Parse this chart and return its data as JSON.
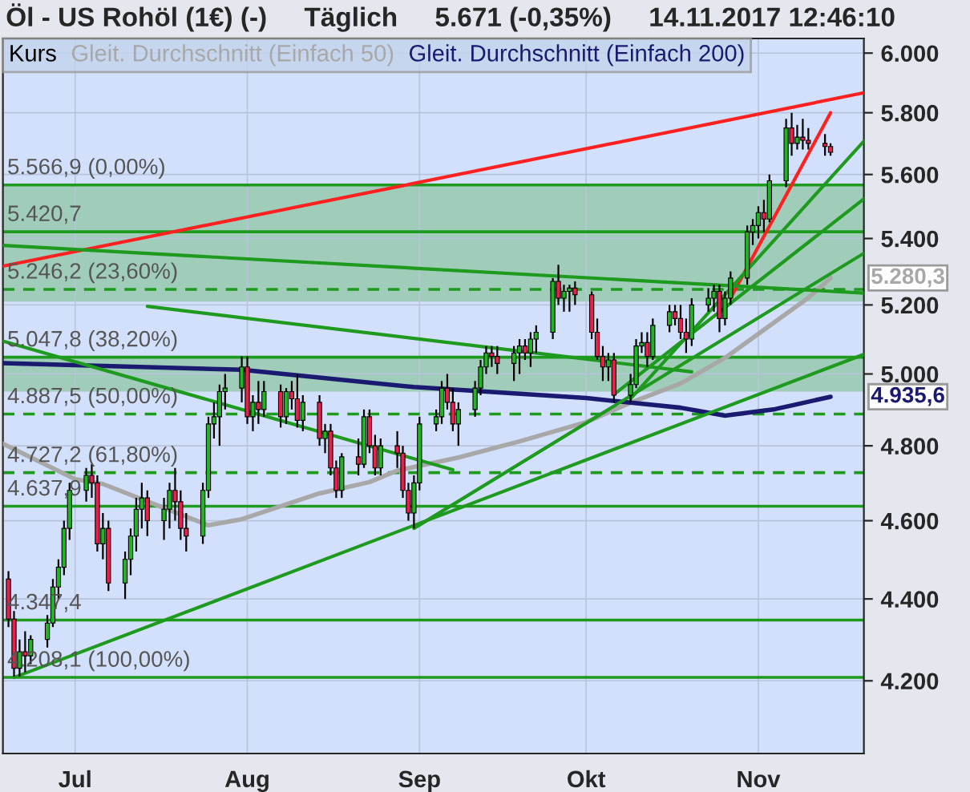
{
  "chart_data": {
    "type": "candlestick",
    "title": "Öl - US Rohöl (1€) (-)     Täglich     5.671 (-0,35%)     14.11.2017 12:46:10",
    "log": true,
    "grid": true,
    "legend": "top left",
    "xlim": [
      "2017-06-18",
      "2017-11-20"
    ],
    "xticks": [
      {
        "value": "2017-07-01",
        "label": "Jul"
      },
      {
        "value": "2017-08-01",
        "label": "Aug"
      },
      {
        "value": "2017-09-01",
        "label": "Sep"
      },
      {
        "value": "2017-10-01",
        "label": "Okt"
      },
      {
        "value": "2017-11-01",
        "label": "Nov"
      }
    ],
    "ylim": [
      4030,
      6050
    ],
    "yticks": [
      {
        "value": 4200,
        "label": "4.200"
      },
      {
        "value": 4400,
        "label": "4.400"
      },
      {
        "value": 4600,
        "label": "4.600"
      },
      {
        "value": 4800,
        "label": "4.800"
      },
      {
        "value": 5000,
        "label": "5.000"
      },
      {
        "value": 5200,
        "label": "5.200"
      },
      {
        "value": 5400,
        "label": "5.400"
      },
      {
        "value": 5600,
        "label": "5.600"
      },
      {
        "value": 5800,
        "label": "5.800"
      },
      {
        "value": 6000,
        "label": "6.000"
      }
    ],
    "series": [
      {
        "name": "Kurs",
        "x": [
          "2017-06-19",
          "2017-06-20",
          "2017-06-21",
          "2017-06-22",
          "2017-06-23",
          "2017-06-26",
          "2017-06-27",
          "2017-06-28",
          "2017-06-29",
          "2017-06-30",
          "2017-07-03",
          "2017-07-04",
          "2017-07-05",
          "2017-07-06",
          "2017-07-07",
          "2017-07-10",
          "2017-07-11",
          "2017-07-12",
          "2017-07-13",
          "2017-07-14",
          "2017-07-17",
          "2017-07-18",
          "2017-07-19",
          "2017-07-20",
          "2017-07-21",
          "2017-07-24",
          "2017-07-25",
          "2017-07-26",
          "2017-07-27",
          "2017-07-28",
          "2017-07-31",
          "2017-08-01",
          "2017-08-02",
          "2017-08-03",
          "2017-08-04",
          "2017-08-07",
          "2017-08-08",
          "2017-08-09",
          "2017-08-10",
          "2017-08-11",
          "2017-08-14",
          "2017-08-15",
          "2017-08-16",
          "2017-08-17",
          "2017-08-18",
          "2017-08-21",
          "2017-08-22",
          "2017-08-23",
          "2017-08-24",
          "2017-08-25",
          "2017-08-28",
          "2017-08-29",
          "2017-08-30",
          "2017-08-31",
          "2017-09-01",
          "2017-09-04",
          "2017-09-05",
          "2017-09-06",
          "2017-09-07",
          "2017-09-08",
          "2017-09-11",
          "2017-09-12",
          "2017-09-13",
          "2017-09-14",
          "2017-09-15",
          "2017-09-18",
          "2017-09-19",
          "2017-09-20",
          "2017-09-21",
          "2017-09-22",
          "2017-09-25",
          "2017-09-26",
          "2017-09-27",
          "2017-09-28",
          "2017-09-29",
          "2017-10-02",
          "2017-10-03",
          "2017-10-04",
          "2017-10-05",
          "2017-10-06",
          "2017-10-09",
          "2017-10-10",
          "2017-10-11",
          "2017-10-12",
          "2017-10-13",
          "2017-10-16",
          "2017-10-17",
          "2017-10-18",
          "2017-10-19",
          "2017-10-20",
          "2017-10-23",
          "2017-10-24",
          "2017-10-25",
          "2017-10-26",
          "2017-10-27",
          "2017-10-30",
          "2017-10-31",
          "2017-11-01",
          "2017-11-02",
          "2017-11-03",
          "2017-11-06",
          "2017-11-07",
          "2017-11-08",
          "2017-11-09",
          "2017-11-10",
          "2017-11-13",
          "2017-11-14"
        ],
        "ohlc": [
          [
            4450,
            4470,
            4330,
            4350
          ],
          [
            4350,
            4370,
            4210,
            4230
          ],
          [
            4230,
            4300,
            4210,
            4270
          ],
          [
            4270,
            4320,
            4220,
            4260
          ],
          [
            4260,
            4310,
            4240,
            4300
          ],
          [
            4300,
            4360,
            4280,
            4340
          ],
          [
            4340,
            4450,
            4330,
            4430
          ],
          [
            4430,
            4500,
            4400,
            4480
          ],
          [
            4480,
            4600,
            4460,
            4580
          ],
          [
            4580,
            4700,
            4550,
            4680
          ],
          [
            4680,
            4740,
            4650,
            4720
          ],
          [
            4720,
            4750,
            4660,
            4700
          ],
          [
            4700,
            4720,
            4520,
            4540
          ],
          [
            4540,
            4620,
            4500,
            4580
          ],
          [
            4580,
            4600,
            4420,
            4440
          ],
          [
            4440,
            4520,
            4400,
            4500
          ],
          [
            4500,
            4580,
            4460,
            4560
          ],
          [
            4560,
            4660,
            4520,
            4630
          ],
          [
            4630,
            4700,
            4580,
            4660
          ],
          [
            4660,
            4680,
            4560,
            4600
          ],
          [
            4600,
            4660,
            4550,
            4630
          ],
          [
            4630,
            4700,
            4580,
            4680
          ],
          [
            4680,
            4740,
            4600,
            4650
          ],
          [
            4650,
            4680,
            4550,
            4580
          ],
          [
            4580,
            4620,
            4520,
            4560
          ],
          [
            4560,
            4700,
            4540,
            4680
          ],
          [
            4680,
            4880,
            4660,
            4860
          ],
          [
            4860,
            4920,
            4820,
            4880
          ],
          [
            4880,
            4970,
            4800,
            4950
          ],
          [
            4950,
            5000,
            4900,
            4960
          ],
          [
            4960,
            5050,
            4920,
            5020
          ],
          [
            5020,
            5050,
            4860,
            4880
          ],
          [
            4880,
            4940,
            4840,
            4920
          ],
          [
            4920,
            4980,
            4860,
            4900
          ],
          [
            4900,
            4980,
            4880,
            4950
          ],
          [
            4950,
            4970,
            4850,
            4880
          ],
          [
            4880,
            4960,
            4860,
            4950
          ],
          [
            4950,
            4980,
            4900,
            4930
          ],
          [
            4930,
            5000,
            4850,
            4870
          ],
          [
            4870,
            4940,
            4840,
            4920
          ],
          [
            4920,
            4940,
            4800,
            4820
          ],
          [
            4820,
            4860,
            4780,
            4840
          ],
          [
            4840,
            4860,
            4720,
            4740
          ],
          [
            4740,
            4760,
            4660,
            4680
          ],
          [
            4680,
            4780,
            4660,
            4770
          ],
          [
            4770,
            4820,
            4720,
            4750
          ],
          [
            4750,
            4900,
            4740,
            4880
          ],
          [
            4880,
            4900,
            4780,
            4800
          ],
          [
            4800,
            4830,
            4720,
            4740
          ],
          [
            4740,
            4820,
            4720,
            4800
          ],
          [
            4800,
            4840,
            4740,
            4780
          ],
          [
            4780,
            4800,
            4660,
            4680
          ],
          [
            4680,
            4700,
            4600,
            4620
          ],
          [
            4620,
            4720,
            4580,
            4700
          ],
          [
            4700,
            4880,
            4680,
            4860
          ],
          [
            4860,
            4900,
            4840,
            4880
          ],
          [
            4880,
            4980,
            4860,
            4960
          ],
          [
            4960,
            5000,
            4900,
            4920
          ],
          [
            4920,
            4960,
            4840,
            4860
          ],
          [
            4860,
            4920,
            4800,
            4900
          ],
          [
            4900,
            4980,
            4880,
            4960
          ],
          [
            4960,
            5040,
            4940,
            5020
          ],
          [
            5020,
            5080,
            5000,
            5060
          ],
          [
            5060,
            5080,
            5020,
            5050
          ],
          [
            5050,
            5080,
            5000,
            5030
          ],
          [
            5030,
            5080,
            4980,
            5060
          ],
          [
            5060,
            5100,
            5000,
            5080
          ],
          [
            5080,
            5100,
            5040,
            5060
          ],
          [
            5060,
            5120,
            5020,
            5100
          ],
          [
            5100,
            5140,
            5060,
            5120
          ],
          [
            5120,
            5280,
            5100,
            5270
          ],
          [
            5270,
            5320,
            5200,
            5220
          ],
          [
            5220,
            5260,
            5180,
            5240
          ],
          [
            5240,
            5260,
            5180,
            5250
          ],
          [
            5250,
            5270,
            5200,
            5230
          ],
          [
            5230,
            5240,
            5100,
            5120
          ],
          [
            5120,
            5160,
            5040,
            5050
          ],
          [
            5050,
            5080,
            4980,
            5020
          ],
          [
            5020,
            5060,
            4980,
            5040
          ],
          [
            5040,
            5060,
            4920,
            4940
          ],
          [
            4940,
            5000,
            4920,
            4970
          ],
          [
            4970,
            5100,
            4960,
            5080
          ],
          [
            5080,
            5120,
            5060,
            5090
          ],
          [
            5090,
            5120,
            5020,
            5050
          ],
          [
            5050,
            5160,
            5040,
            5140
          ],
          [
            5140,
            5200,
            5120,
            5180
          ],
          [
            5180,
            5200,
            5140,
            5160
          ],
          [
            5160,
            5200,
            5100,
            5120
          ],
          [
            5120,
            5160,
            5060,
            5100
          ],
          [
            5100,
            5220,
            5080,
            5200
          ],
          [
            5200,
            5250,
            5180,
            5220
          ],
          [
            5220,
            5260,
            5180,
            5240
          ],
          [
            5240,
            5260,
            5120,
            5160
          ],
          [
            5160,
            5240,
            5140,
            5220
          ],
          [
            5220,
            5300,
            5200,
            5280
          ],
          [
            5280,
            5440,
            5260,
            5420
          ],
          [
            5420,
            5460,
            5380,
            5440
          ],
          [
            5440,
            5500,
            5400,
            5480
          ],
          [
            5480,
            5520,
            5420,
            5460
          ],
          [
            5460,
            5600,
            5450,
            5580
          ],
          [
            5580,
            5780,
            5560,
            5750
          ],
          [
            5750,
            5800,
            5660,
            5700
          ],
          [
            5700,
            5760,
            5680,
            5720
          ],
          [
            5720,
            5780,
            5680,
            5710
          ],
          [
            5710,
            5750,
            5680,
            5700
          ],
          [
            5700,
            5730,
            5660,
            5690
          ],
          [
            5690,
            5700,
            5660,
            5671
          ]
        ]
      },
      {
        "type": "line",
        "name": "Gleit. Durchschnitt (Einfach 50)",
        "color": "#a8a8a8",
        "x": [
          "2017-06-18",
          "2017-07-01",
          "2017-07-06",
          "2017-07-25",
          "2017-07-31",
          "2017-08-14",
          "2017-08-23",
          "2017-08-28",
          "2017-09-08",
          "2017-09-19",
          "2017-10-01",
          "2017-10-09",
          "2017-10-18",
          "2017-10-26",
          "2017-11-04",
          "2017-11-10",
          "2017-11-14"
        ],
        "values": [
          4806,
          4710,
          4697,
          4588,
          4604,
          4672,
          4702,
          4733,
          4768,
          4812,
          4865,
          4919,
          4973,
          5046,
          5150,
          5221,
          5280.3
        ]
      },
      {
        "type": "line",
        "name": "Gleit. Durchschnitt (Einfach 200)",
        "color": "#1a1a70",
        "x": [
          "2017-06-18",
          "2017-07-31",
          "2017-08-31",
          "2017-10-01",
          "2017-10-18",
          "2017-10-26",
          "2017-11-04",
          "2017-11-14"
        ],
        "values": [
          5031,
          5012,
          4963,
          4932,
          4905,
          4883,
          4901,
          4935.6
        ]
      },
      {
        "type": "line",
        "color": "#ff2020",
        "x": [
          "2017-06-18",
          "2017-11-20"
        ],
        "values": [
          5316,
          5866
        ]
      },
      {
        "type": "line",
        "color": "#ff2020",
        "x": [
          "2017-10-27",
          "2017-11-14"
        ],
        "values": [
          5220,
          5800
        ]
      },
      {
        "type": "line",
        "color": "#1e9a1e",
        "x": [
          "2017-06-18",
          "2017-11-20"
        ],
        "values": [
          5379,
          5235
        ]
      },
      {
        "type": "line",
        "color": "#1e9a1e",
        "x": [
          "2017-07-14",
          "2017-10-20"
        ],
        "values": [
          5196,
          5006
        ]
      },
      {
        "type": "line",
        "color": "#1e9a1e",
        "x": [
          "2017-06-18",
          "2017-09-07"
        ],
        "values": [
          5094,
          4735
        ]
      },
      {
        "type": "line",
        "color": "#1e9a1e",
        "x": [
          "2017-06-20",
          "2017-11-20"
        ],
        "values": [
          4208,
          5056
        ]
      },
      {
        "type": "line",
        "color": "#1e9a1e",
        "x": [
          "2017-08-31",
          "2017-11-20"
        ],
        "values": [
          4580,
          5355
        ]
      },
      {
        "type": "line",
        "color": "#1e9a1e",
        "x": [
          "2017-10-06",
          "2017-11-20"
        ],
        "values": [
          4942,
          5523
        ]
      },
      {
        "type": "line",
        "color": "#1e9a1e",
        "x": [
          "2017-10-09",
          "2017-11-20"
        ],
        "values": [
          4930,
          5707
        ]
      }
    ],
    "bands": [
      {
        "axis": "y",
        "from": 5420,
        "to": 5566.9,
        "color": "#7fbf8f"
      },
      {
        "axis": "y",
        "from": 5210,
        "to": 5420,
        "color": "#7fbf8f"
      },
      {
        "axis": "y",
        "from": 4950,
        "to": 5047.8,
        "color": "#7fbf8f"
      }
    ],
    "ref_lines": [
      {
        "axis": "y",
        "value": 5566.9,
        "label": "5.566,9 (0,00%)",
        "color": "#1e9a1e",
        "line_style": "solid"
      },
      {
        "axis": "y",
        "value": 5420.7,
        "label": "5.420,7",
        "color": "#1e9a1e",
        "line_style": "solid"
      },
      {
        "axis": "y",
        "value": 5246.2,
        "label": "5.246,2 (23,60%)",
        "color": "#1e9a1e",
        "line_style": "dashed"
      },
      {
        "axis": "y",
        "value": 5047.8,
        "label": "5.047,8 (38,20%)",
        "color": "#1e9a1e",
        "line_style": "solid"
      },
      {
        "axis": "y",
        "value": 4887.5,
        "label": "4.887,5 (50,00%)",
        "color": "#1e9a1e",
        "line_style": "dashed"
      },
      {
        "axis": "y",
        "value": 4727.2,
        "label": "4.727,2 (61,80%)",
        "color": "#1e9a1e",
        "line_style": "dashed"
      },
      {
        "axis": "y",
        "value": 4637.9,
        "label": "4.637,9",
        "color": "#1e9a1e",
        "line_style": "solid"
      },
      {
        "axis": "y",
        "value": 4347.4,
        "label": "4.347,4",
        "color": "#1e9a1e",
        "line_style": "solid"
      },
      {
        "axis": "y",
        "value": 4208.1,
        "label": "4.208,1 (100,00%)",
        "color": "#1e9a1e",
        "line_style": "solid"
      }
    ],
    "annotations": [
      {
        "text": "5.280,3",
        "x": "2017-11-14",
        "y": 5280.3
      },
      {
        "text": "4.935,6",
        "x": "2017-11-14",
        "y": 4935.6
      }
    ]
  }
}
